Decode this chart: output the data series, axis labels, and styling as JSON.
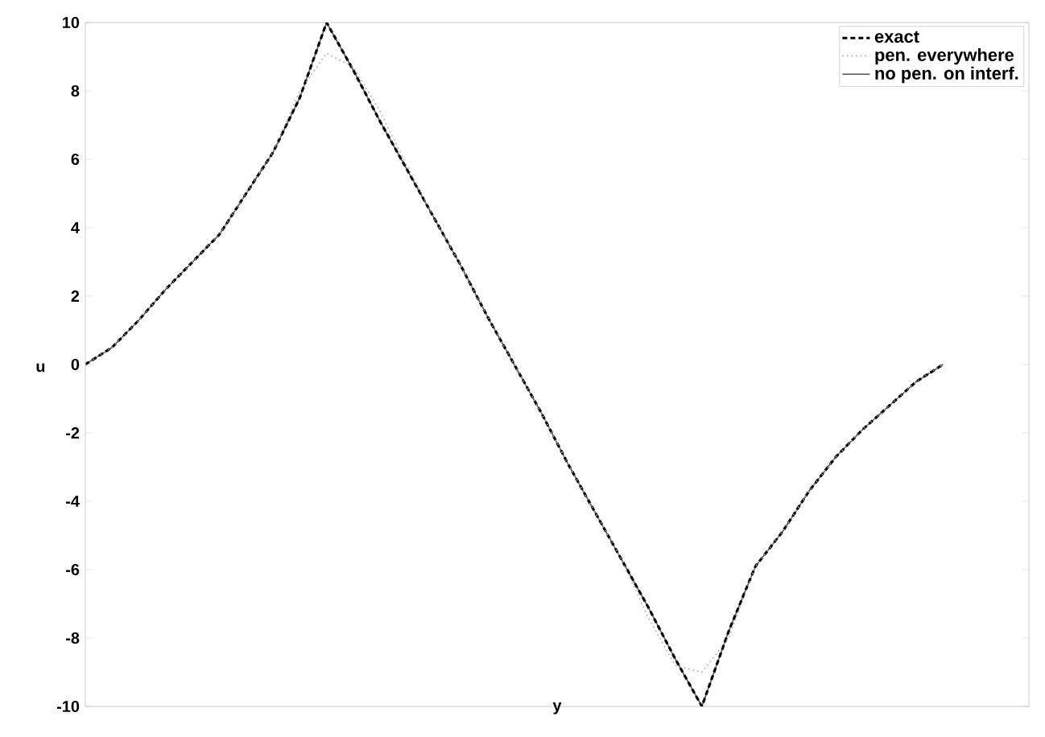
{
  "chart_data": {
    "type": "line",
    "xlabel": "y",
    "ylabel": "u",
    "categories": [
      null,
      null,
      null,
      null,
      null,
      null,
      null,
      null,
      null,
      null,
      null,
      null,
      null,
      null,
      null,
      null,
      null,
      null,
      null,
      null,
      null,
      null,
      null,
      null,
      null,
      null,
      null,
      null,
      null,
      null,
      null,
      null,
      null,
      null,
      null,
      null
    ],
    "series": [
      {
        "name": "exact",
        "color": "#000000",
        "line_style": "dashed",
        "values": [
          0,
          0.5,
          1.3,
          2.2,
          3.0,
          3.8,
          5.0,
          6.2,
          7.8,
          10,
          8.6,
          7.1,
          5.7,
          4.3,
          2.9,
          1.4,
          0,
          -1.4,
          -2.9,
          -4.3,
          -5.7,
          -7.1,
          -8.6,
          -10,
          -7.8,
          -5.9,
          -4.9,
          -3.7,
          -2.7,
          -1.9,
          -1.2,
          -0.5,
          0,
          null,
          null,
          null
        ]
      },
      {
        "name": "pen. everywhere",
        "color": "#aaaaaa",
        "line_style": "dotted",
        "values": [
          0,
          0.5,
          1.3,
          2.2,
          3.0,
          3.8,
          5.0,
          6.2,
          8.0,
          9.1,
          8.7,
          7.4,
          5.8,
          4.3,
          2.9,
          1.4,
          0,
          -1.4,
          -2.9,
          -4.3,
          -5.7,
          -7.4,
          -8.8,
          -9.0,
          -8.0,
          -5.9,
          -4.9,
          -3.7,
          -2.7,
          -1.9,
          -1.2,
          -0.5,
          0,
          null,
          null,
          null
        ]
      },
      {
        "name": "no pen. on interf.",
        "color": "#555555",
        "line_style": "solid",
        "values": [
          0,
          0.5,
          1.3,
          2.2,
          3.0,
          3.8,
          5.0,
          6.2,
          7.8,
          10,
          8.6,
          7.1,
          5.7,
          4.3,
          2.9,
          1.4,
          0,
          -1.4,
          -2.9,
          -4.3,
          -5.7,
          -7.1,
          -8.6,
          -10,
          -7.8,
          -5.9,
          -4.9,
          -3.7,
          -2.7,
          -1.9,
          -1.2,
          -0.5,
          0,
          null,
          null,
          null
        ]
      }
    ],
    "ylim": [
      -10,
      10
    ],
    "yticks": [
      -10,
      -8,
      -6,
      -4,
      -2,
      0,
      2,
      4,
      6,
      8,
      10
    ],
    "tick_labels": "y",
    "legend": "top right",
    "grid": false
  }
}
